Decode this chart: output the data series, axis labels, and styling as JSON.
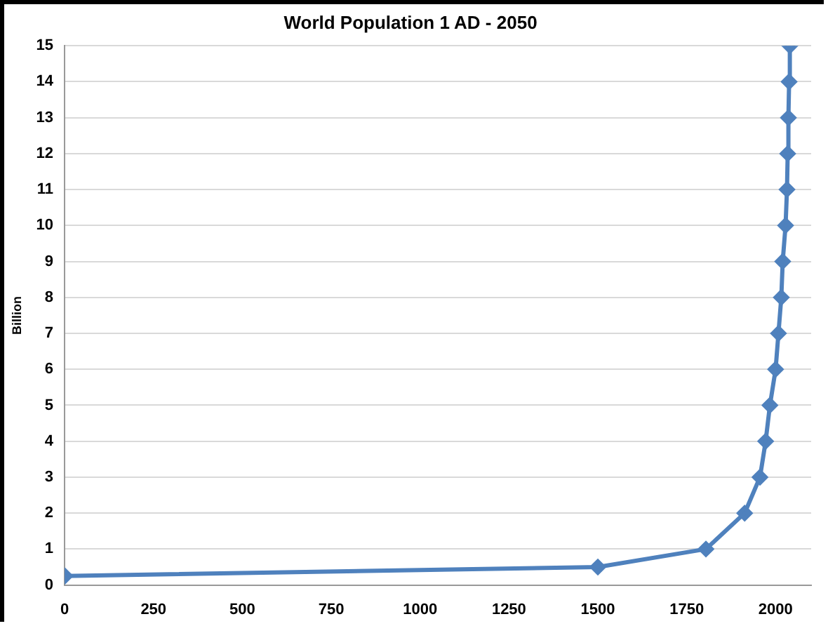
{
  "chart_data": {
    "type": "line",
    "title": "World Population 1 AD - 2050",
    "ylabel": "Billion",
    "x": [
      1,
      1500,
      1804,
      1913,
      1956,
      1972,
      1984,
      2000,
      2008,
      2016,
      2020,
      2028,
      2032,
      2034,
      2036,
      2038,
      2040
    ],
    "series": [
      {
        "color": "#4f81bd",
        "values": [
          0.25,
          0.5,
          1,
          2,
          3,
          4,
          5,
          6,
          7,
          8,
          9,
          10,
          11,
          12,
          13,
          14,
          15
        ]
      }
    ],
    "xlim": [
      0,
      2100
    ],
    "xticks": [
      0,
      250,
      500,
      750,
      1000,
      1250,
      1500,
      1750,
      2000
    ],
    "ylim": [
      0,
      15
    ],
    "yticks": [
      0,
      1,
      2,
      3,
      4,
      5,
      6,
      7,
      8,
      9,
      10,
      11,
      12,
      13,
      14,
      15
    ],
    "grid": "y",
    "legend": false,
    "marker": "diamond",
    "line_style": "solid"
  }
}
